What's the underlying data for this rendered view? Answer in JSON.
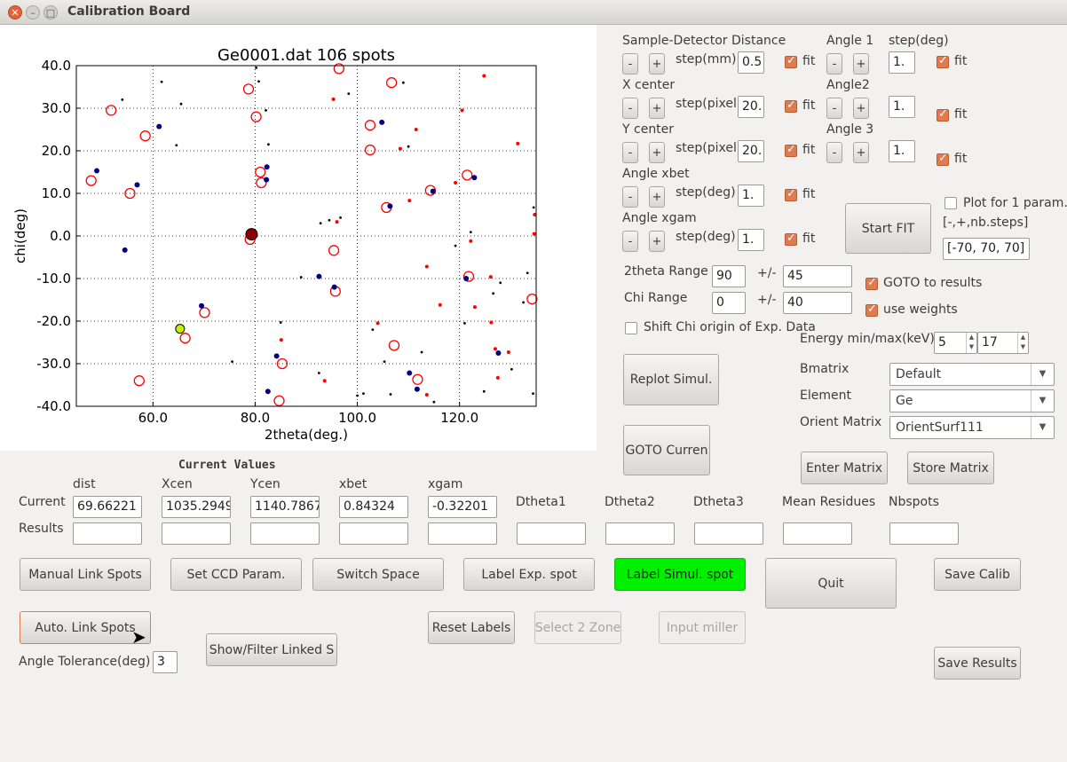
{
  "window": {
    "title": "Calibration Board"
  },
  "colors": {
    "accent": "#e07a4f",
    "highlight_button": "#00f000",
    "exp_spot": "#ff0000",
    "sim_spot": "#000080"
  },
  "chart_data": {
    "type": "scatter",
    "title": "Ge0001.dat 106 spots",
    "xlabel": "2theta(deg.)",
    "ylabel": "chi(deg)",
    "xlim": [
      45,
      135
    ],
    "ylim": [
      -40,
      40
    ],
    "xticks": [
      "60.0",
      "80.0",
      "100.0",
      "120.0"
    ],
    "yticks": [
      "40.0",
      "30.0",
      "20.0",
      "10.0",
      "0.0",
      "-10.0",
      "-20.0",
      "-30.0",
      "-40.0"
    ],
    "grid": true,
    "series": [
      {
        "marker": "open-circle-red",
        "points": [
          [
            47.9,
            13
          ],
          [
            51.8,
            29.5
          ],
          [
            55.5,
            10
          ],
          [
            57.3,
            -34
          ],
          [
            58.5,
            23.5
          ],
          [
            66.3,
            -24
          ],
          [
            70.1,
            -18
          ],
          [
            78.7,
            34.5
          ],
          [
            79,
            -0.8
          ],
          [
            80.2,
            28
          ],
          [
            81,
            15
          ],
          [
            81.2,
            12.5
          ],
          [
            84.7,
            -38.7
          ],
          [
            85.3,
            -30
          ],
          [
            95.7,
            -13
          ],
          [
            96.4,
            39.3
          ],
          [
            102.5,
            26
          ],
          [
            105.7,
            6.7
          ],
          [
            106.7,
            36
          ],
          [
            107.2,
            -25.7
          ],
          [
            111.8,
            -33.7
          ],
          [
            114.3,
            10.7
          ],
          [
            121.5,
            14.3
          ],
          [
            121.8,
            -9.5
          ],
          [
            134.2,
            -14.8
          ],
          [
            95.4,
            -3.4
          ],
          [
            102.5,
            20.2
          ]
        ]
      },
      {
        "marker": "dot-red-small",
        "points": [
          [
            96,
            3.3
          ],
          [
            104,
            -20.5
          ],
          [
            108.4,
            20.5
          ],
          [
            110.2,
            8.3
          ],
          [
            111.5,
            25
          ],
          [
            113.6,
            -7.2
          ],
          [
            116.2,
            -16.2
          ],
          [
            120.5,
            29.5
          ],
          [
            122.2,
            -1.2
          ],
          [
            123,
            -16.7
          ],
          [
            124.8,
            37.6
          ],
          [
            126.1,
            -9.6
          ],
          [
            126.2,
            -20.3
          ],
          [
            127,
            -26.5
          ],
          [
            127.5,
            -33.3
          ],
          [
            129.6,
            -27.3
          ],
          [
            131.4,
            21.7
          ],
          [
            113.6,
            -37.3
          ],
          [
            93.6,
            -34
          ],
          [
            85.1,
            -24.4
          ],
          [
            95.3,
            32.1
          ],
          [
            119.2,
            12.5
          ],
          [
            134.6,
            0.5
          ],
          [
            134.7,
            5
          ]
        ]
      },
      {
        "marker": "dot-navy",
        "points": [
          [
            49,
            15.3
          ],
          [
            54.5,
            -3.3
          ],
          [
            56.9,
            12
          ],
          [
            61.2,
            25.7
          ],
          [
            69.5,
            -16.4
          ],
          [
            82.3,
            16.2
          ],
          [
            82.2,
            13.2
          ],
          [
            84.2,
            -28.2
          ],
          [
            82.5,
            -36.5
          ],
          [
            92.5,
            -9.5
          ],
          [
            95.5,
            -12
          ],
          [
            104.8,
            26.7
          ],
          [
            106.4,
            7
          ],
          [
            110.2,
            -32.2
          ],
          [
            111.7,
            -36
          ],
          [
            114.8,
            10.5
          ],
          [
            121.3,
            -10
          ],
          [
            122.9,
            13.7
          ],
          [
            127.6,
            -27.5
          ]
        ]
      },
      {
        "marker": "dot-black-small",
        "points": [
          [
            54,
            32
          ],
          [
            61.7,
            36.2
          ],
          [
            64.6,
            21.3
          ],
          [
            65.5,
            31
          ],
          [
            75.5,
            -29.5
          ],
          [
            80.2,
            39.5
          ],
          [
            80.7,
            36.3
          ],
          [
            82.1,
            29.5
          ],
          [
            82.6,
            21.5
          ],
          [
            85,
            -20.3
          ],
          [
            89,
            -9.7
          ],
          [
            92.5,
            -32.2
          ],
          [
            92.8,
            3
          ],
          [
            94.5,
            3.7
          ],
          [
            96.7,
            4.3
          ],
          [
            98.3,
            33.4
          ],
          [
            100,
            -37.5
          ],
          [
            101.2,
            -37
          ],
          [
            103,
            -22
          ],
          [
            105.3,
            -29.5
          ],
          [
            106.5,
            -37.2
          ],
          [
            109,
            36
          ],
          [
            110,
            21
          ],
          [
            112.6,
            -27.3
          ],
          [
            115,
            -39
          ],
          [
            119.2,
            -2.3
          ],
          [
            121,
            -20.5
          ],
          [
            122.2,
            0.9
          ],
          [
            124.8,
            -36.5
          ],
          [
            126.6,
            -13.5
          ],
          [
            128,
            -11
          ],
          [
            130.2,
            -31.3
          ],
          [
            132.5,
            -15.6
          ],
          [
            133.3,
            -8.7
          ],
          [
            134.4,
            -37
          ],
          [
            134.5,
            6.7
          ]
        ]
      }
    ],
    "highlight_points": [
      {
        "x": 79.3,
        "y": 0.4,
        "marker": "large-darkred"
      },
      {
        "x": 65.3,
        "y": -21.8,
        "marker": "yellow-green"
      }
    ]
  },
  "params": {
    "sample_detector_label": "Sample-Detector Distance",
    "xcenter_label": "X center",
    "ycenter_label": "Y center",
    "anglexbet_label": "Angle xbet",
    "anglexgam_label": "Angle xgam",
    "step_mm": "step(mm)",
    "step_pixel": "step(pixel)",
    "step_deg": "step(deg)",
    "minus": "-",
    "plus": "+",
    "fit": "fit",
    "dist_step": "0.5",
    "xcen_step": "20.",
    "ycen_step": "20.",
    "xbet_step": "1.",
    "xgam_step": "1."
  },
  "angles": {
    "angle1_label": "Angle 1",
    "angle2_label": "Angle2",
    "angle3_label": "Angle 3",
    "stepdeg_label": "step(deg)",
    "a1_step": "1.",
    "a2_step": "1.",
    "a3_step": "1."
  },
  "fit": {
    "plot_one_param": "Plot for 1 param.",
    "steps_hint": "[-,+,nb.steps]",
    "steps_value": "[-70, 70, 70]",
    "start_fit": "Start FIT"
  },
  "ranges": {
    "twotheta_label": "2theta Range",
    "twotheta_value": "90",
    "twotheta_pm": "45",
    "chi_label": "Chi Range",
    "chi_value": "0",
    "chi_pm": "40",
    "pm": "+/-",
    "shift_chi": "Shift Chi origin of Exp. Data",
    "goto_results": "GOTO to results",
    "use_weights": "use weights",
    "energy_label": "Energy min/max(keV):",
    "energy_min": "5",
    "energy_max": "17"
  },
  "matrix": {
    "bmatrix_label": "Bmatrix",
    "bmatrix_value": "Default",
    "element_label": "Element",
    "element_value": "Ge",
    "orient_label": "Orient Matrix",
    "orient_value": "OrientSurf111",
    "enter_matrix": "Enter Matrix",
    "store_matrix": "Store Matrix",
    "replot_simul": "Replot Simul.",
    "goto_current": "GOTO Curren"
  },
  "values": {
    "heading": "Current Values",
    "current_label": "Current",
    "results_label": "Results",
    "columns": [
      "dist",
      "Xcen",
      "Ycen",
      "xbet",
      "xgam",
      "Dtheta1",
      "Dtheta2",
      "Dtheta3",
      "Mean Residues",
      "Nbspots"
    ],
    "current": [
      "69.66221",
      "1035.29492",
      "1140.78674",
      "0.84324",
      "-0.32201"
    ]
  },
  "actions": {
    "manual_link": "Manual Link Spots",
    "set_ccd": "Set CCD Param.",
    "switch_space": "Switch Space",
    "label_exp": "Label Exp. spot",
    "label_sim": "Label Simul. spot",
    "quit": "Quit",
    "save_calib": "Save Calib",
    "auto_link": "Auto. Link Spots",
    "show_filter": "Show/Filter Linked S",
    "reset_labels": "Reset Labels",
    "select_zone": "Select 2 Zone",
    "input_miller": "Input miller",
    "save_results": "Save Results",
    "angle_tol_label": "Angle Tolerance(deg)",
    "angle_tol_value": "3"
  }
}
